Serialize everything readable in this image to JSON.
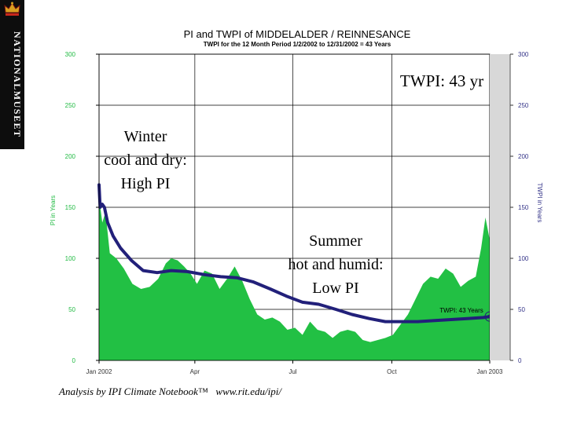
{
  "logo": {
    "text": "NATIONALMUSEET"
  },
  "chart_data": {
    "type": "area",
    "title": "PI and TWPI of MIDDELALDER / REINNESANCE",
    "subtitle": "TWPI for the 12 Month Period 1/2/2002 to 12/31/2002 = 43 Years",
    "ylabel_left": "PI in Years",
    "ylabel_right": "TWPI in Years",
    "ylim": [
      0,
      300
    ],
    "yticks": [
      0,
      50,
      100,
      150,
      200,
      250,
      300
    ],
    "xlim": [
      "2002-01-02",
      "2002-12-31"
    ],
    "xtick_labels": [
      "Jan 2002",
      "Apr",
      "Jul",
      "Oct",
      "Jan 2003"
    ],
    "xtick_dates": [
      "2002-01-01",
      "2002-04-01",
      "2002-07-01",
      "2002-10-01",
      "2003-01-01"
    ],
    "grid": true,
    "series": [
      {
        "name": "PI",
        "color": "#22c044",
        "x": [
          "2002-01-02",
          "2002-01-05",
          "2002-01-08",
          "2002-01-12",
          "2002-01-18",
          "2002-01-25",
          "2002-02-02",
          "2002-02-10",
          "2002-02-18",
          "2002-02-26",
          "2002-03-05",
          "2002-03-10",
          "2002-03-16",
          "2002-03-22",
          "2002-03-28",
          "2002-04-03",
          "2002-04-10",
          "2002-04-17",
          "2002-04-24",
          "2002-05-01",
          "2002-05-08",
          "2002-05-15",
          "2002-05-22",
          "2002-05-29",
          "2002-06-05",
          "2002-06-12",
          "2002-06-19",
          "2002-06-26",
          "2002-07-03",
          "2002-07-10",
          "2002-07-17",
          "2002-07-24",
          "2002-07-31",
          "2002-08-07",
          "2002-08-14",
          "2002-08-21",
          "2002-08-28",
          "2002-09-04",
          "2002-09-11",
          "2002-09-18",
          "2002-09-25",
          "2002-10-02",
          "2002-10-09",
          "2002-10-16",
          "2002-10-23",
          "2002-10-30",
          "2002-11-06",
          "2002-11-13",
          "2002-11-20",
          "2002-11-27",
          "2002-12-04",
          "2002-12-11",
          "2002-12-18",
          "2002-12-23",
          "2002-12-27",
          "2002-12-31"
        ],
        "values": [
          160,
          135,
          145,
          105,
          100,
          90,
          75,
          70,
          72,
          80,
          95,
          100,
          98,
          92,
          85,
          75,
          88,
          85,
          70,
          80,
          92,
          78,
          60,
          45,
          40,
          42,
          38,
          30,
          32,
          25,
          38,
          30,
          28,
          22,
          28,
          30,
          28,
          20,
          18,
          20,
          22,
          25,
          35,
          45,
          60,
          75,
          82,
          80,
          90,
          85,
          72,
          78,
          82,
          110,
          140,
          118
        ]
      },
      {
        "name": "TWPI",
        "color": "#22207a",
        "x": [
          "2002-01-02",
          "2002-01-03",
          "2002-01-05",
          "2002-01-07",
          "2002-01-10",
          "2002-01-15",
          "2002-01-22",
          "2002-02-01",
          "2002-02-12",
          "2002-02-25",
          "2002-03-10",
          "2002-03-25",
          "2002-04-10",
          "2002-04-25",
          "2002-05-10",
          "2002-05-25",
          "2002-06-10",
          "2002-06-25",
          "2002-07-10",
          "2002-07-25",
          "2002-08-10",
          "2002-08-25",
          "2002-09-10",
          "2002-09-25",
          "2002-10-10",
          "2002-10-25",
          "2002-11-10",
          "2002-11-25",
          "2002-12-10",
          "2002-12-25",
          "2002-12-31"
        ],
        "values": [
          172,
          150,
          153,
          150,
          135,
          122,
          110,
          98,
          88,
          86,
          88,
          87,
          84,
          82,
          81,
          77,
          70,
          63,
          57,
          55,
          50,
          45,
          41,
          38,
          38,
          38,
          39,
          40,
          41,
          42,
          43
        ]
      }
    ],
    "annotations": {
      "winter": [
        "Winter",
        "cool and dry:",
        "High PI"
      ],
      "summer": [
        "Summer",
        "hot and humid:",
        "Low PI"
      ],
      "twpi_big": "TWPI: 43 yr",
      "twpi_point_label": "TWPI: 43 Years"
    }
  },
  "footer": {
    "text": "Analysis by IPI Climate Notebook™   www.rit.edu/ipi/"
  }
}
